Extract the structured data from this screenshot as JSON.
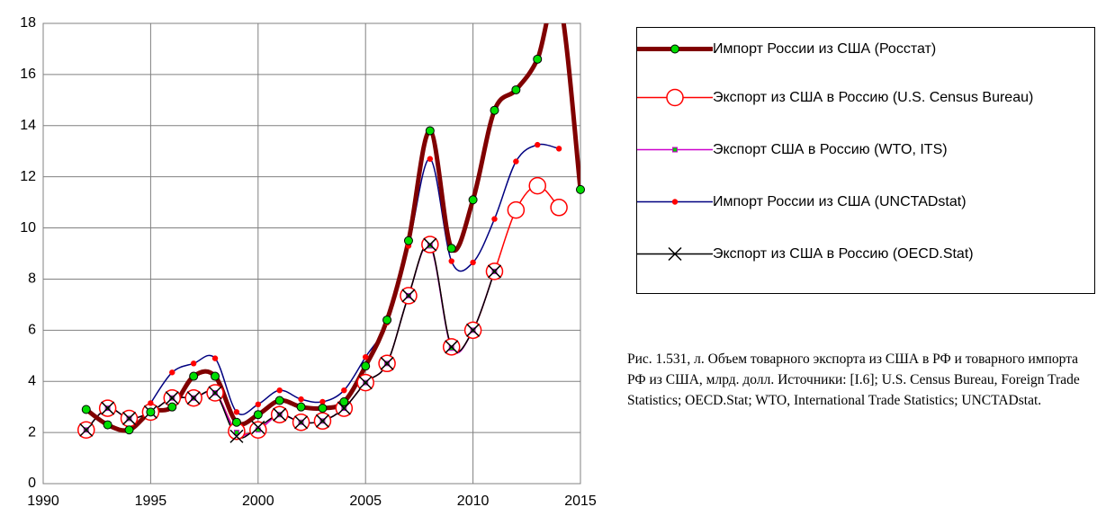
{
  "chart_data": {
    "type": "line",
    "caption": "Рис. 1.531, л. Объем товарного экспорта из США в РФ и товарного импорта РФ из США, млрд. долл. Источники: [I.6]; U.S. Census Bureau, Foreign Trade Statistics; OECD.Stat; WTO, International Trade Statistics; UNCTADstat.",
    "x": [
      1992,
      1993,
      1994,
      1995,
      1996,
      1997,
      1998,
      1999,
      2000,
      2001,
      2002,
      2003,
      2004,
      2005,
      2006,
      2007,
      2008,
      2009,
      2010,
      2011,
      2012,
      2013,
      2014,
      2015
    ],
    "xlim": [
      1990,
      2015
    ],
    "xticks": [
      1990,
      1995,
      2000,
      2005,
      2010,
      2015
    ],
    "ylim": [
      0,
      18
    ],
    "yticks": [
      0,
      2,
      4,
      6,
      8,
      10,
      12,
      14,
      16,
      18
    ],
    "grid": true,
    "series": [
      {
        "name": "Импорт России из США (Росстат)",
        "color": "#800000",
        "marker": "dot",
        "marker_color": "#00dd00",
        "width": 5,
        "values": [
          2.9,
          2.3,
          2.1,
          2.8,
          3.0,
          4.2,
          4.2,
          2.4,
          2.7,
          3.25,
          3.0,
          2.95,
          3.2,
          4.6,
          6.4,
          9.5,
          13.8,
          9.2,
          11.1,
          14.6,
          15.4,
          16.6,
          19.0,
          11.5
        ]
      },
      {
        "name": "Экспорт из США в Россию (U.S. Census Bureau)",
        "color": "#ff0000",
        "marker": "ring",
        "marker_color": "#ffffff",
        "width": 1.5,
        "values": [
          2.1,
          2.95,
          2.55,
          2.8,
          3.35,
          3.35,
          3.55,
          2.05,
          2.1,
          2.7,
          2.4,
          2.45,
          2.95,
          3.95,
          4.7,
          7.35,
          9.35,
          5.35,
          6.0,
          8.3,
          10.7,
          11.65,
          10.8,
          null
        ]
      },
      {
        "name": "Экспорт США в Россию (WTO, ITS)",
        "color": "#cc00cc",
        "marker": "square",
        "marker_color": "#00cc00",
        "width": 1.5,
        "values": [
          2.1,
          2.95,
          2.55,
          2.8,
          3.35,
          3.35,
          3.55,
          2.0,
          2.1,
          2.7,
          2.4,
          2.45,
          2.95,
          3.95,
          4.7,
          7.35,
          9.3,
          5.3,
          6.0,
          8.3,
          null,
          null,
          null,
          null
        ]
      },
      {
        "name": "Импорт России из США (UNCTADstat)",
        "color": "#000080",
        "marker": "small",
        "marker_color": "#ff0000",
        "width": 1.5,
        "values": [
          null,
          null,
          null,
          3.15,
          4.35,
          4.7,
          4.9,
          2.8,
          3.1,
          3.65,
          3.3,
          3.2,
          3.65,
          4.95,
          6.3,
          9.3,
          12.7,
          8.7,
          8.65,
          10.35,
          12.6,
          13.25,
          13.1,
          null
        ]
      },
      {
        "name": "Экспорт из США в Россию (OECD.Stat)",
        "color": "#000000",
        "marker": "cross",
        "marker_color": "#000000",
        "width": 1.5,
        "values": [
          2.1,
          2.95,
          2.55,
          2.8,
          3.35,
          3.35,
          3.55,
          1.85,
          2.2,
          2.7,
          2.4,
          2.45,
          2.95,
          3.95,
          4.7,
          7.35,
          9.35,
          5.35,
          6.0,
          8.3,
          null,
          null,
          null,
          null
        ]
      }
    ]
  }
}
